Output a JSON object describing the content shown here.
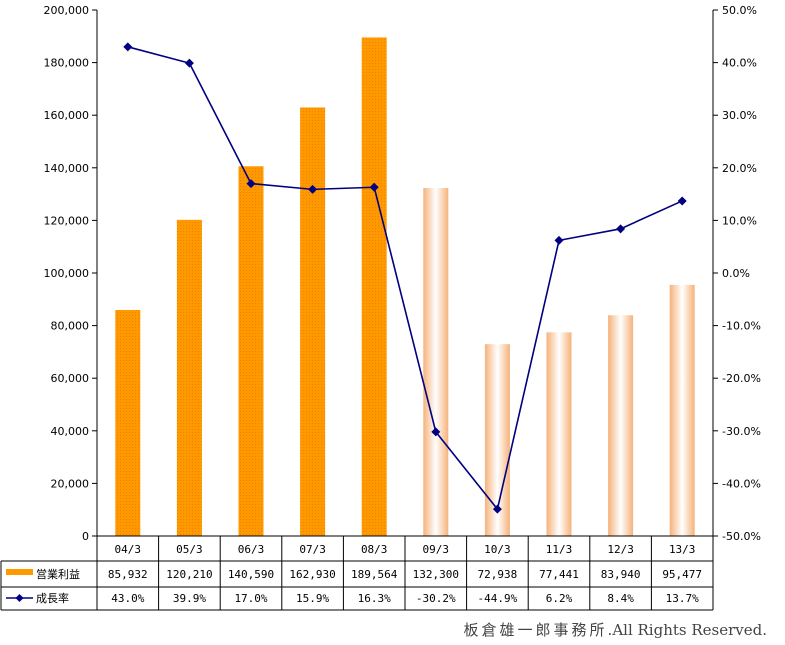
{
  "chart_data": {
    "type": "bar+line",
    "categories": [
      "04/3",
      "05/3",
      "06/3",
      "07/3",
      "08/3",
      "09/3",
      "10/3",
      "11/3",
      "12/3",
      "13/3"
    ],
    "series": [
      {
        "name": "営業利益",
        "type": "bar",
        "axis": "left",
        "values": [
          85932,
          120210,
          140590,
          162930,
          189564,
          132300,
          72938,
          77441,
          83940,
          95477
        ],
        "value_labels": [
          "85,932",
          "120,210",
          "140,590",
          "162,930",
          "189,564",
          "132,300",
          "72,938",
          "77,441",
          "83,940",
          "95,477"
        ],
        "style": [
          "solid",
          "solid",
          "solid",
          "solid",
          "solid",
          "gradient",
          "gradient",
          "gradient",
          "gradient",
          "gradient"
        ]
      },
      {
        "name": "成長率",
        "type": "line",
        "axis": "right",
        "values": [
          43.0,
          39.9,
          17.0,
          15.9,
          16.3,
          -30.2,
          -44.9,
          6.2,
          8.4,
          13.7
        ],
        "value_labels": [
          "43.0%",
          "39.9%",
          "17.0%",
          "15.9%",
          "16.3%",
          "-30.2%",
          "-44.9%",
          "6.2%",
          "8.4%",
          "13.7%"
        ]
      }
    ],
    "y_left": {
      "lim": [
        0,
        200000
      ],
      "ticks": [
        0,
        20000,
        40000,
        60000,
        80000,
        100000,
        120000,
        140000,
        160000,
        180000,
        200000
      ],
      "tick_labels": [
        "0",
        "20,000",
        "40,000",
        "60,000",
        "80,000",
        "100,000",
        "120,000",
        "140,000",
        "160,000",
        "180,000",
        "200,000"
      ]
    },
    "y_right": {
      "lim": [
        -50,
        50
      ],
      "ticks": [
        -50,
        -40,
        -30,
        -20,
        -10,
        0,
        10,
        20,
        30,
        40,
        50
      ],
      "tick_labels": [
        "-50.0%",
        "-40.0%",
        "-30.0%",
        "-20.0%",
        "-10.0%",
        "0.0%",
        "10.0%",
        "20.0%",
        "30.0%",
        "40.0%",
        "50.0%"
      ]
    },
    "data_table": true,
    "grid": false,
    "colors": {
      "bar": "#FF9900",
      "bar_gradient_edge": "#F6B27A",
      "bar_gradient_center": "#FFFFFF",
      "line": "#000080",
      "marker": "#000080"
    }
  },
  "credit": {
    "owner": "板倉雄一郎事務所",
    "rights": ".All Rights Reserved."
  }
}
